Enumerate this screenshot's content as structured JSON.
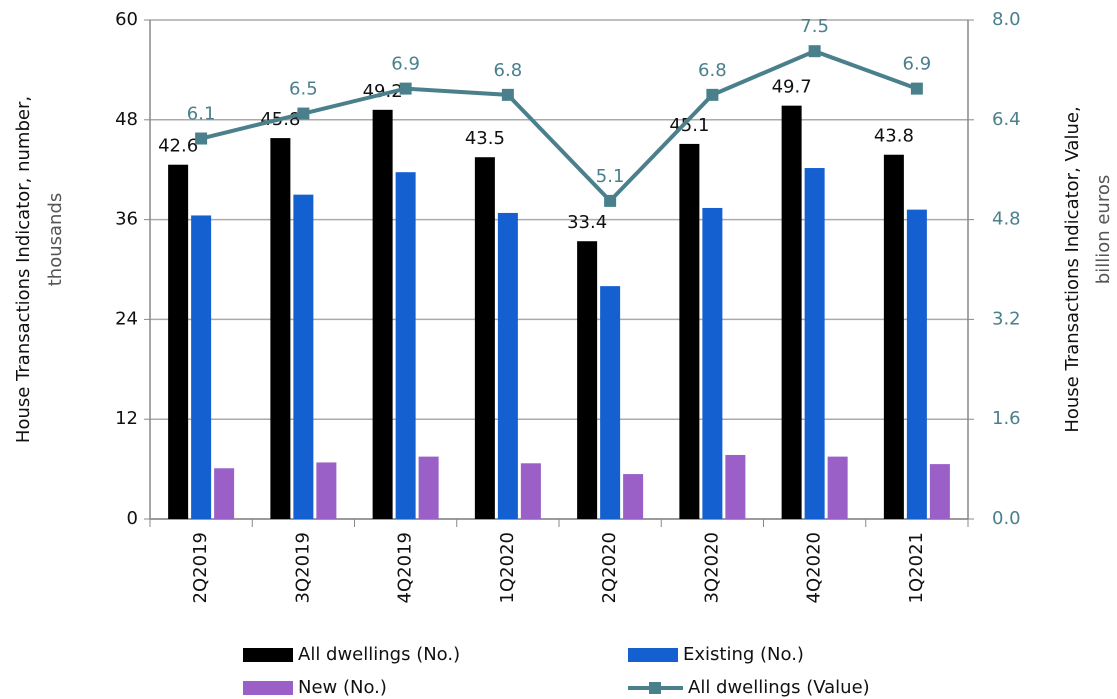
{
  "chart_data": {
    "type": "bar",
    "ylabel": [
      "House Transactions Indicator, number,",
      "thousands"
    ],
    "y2label": [
      "House Transactions Indicator, Value,",
      "billion euros"
    ],
    "categories": [
      "2Q2019",
      "3Q2019",
      "4Q2019",
      "1Q2020",
      "2Q2020",
      "3Q2020",
      "4Q2020",
      "1Q2021"
    ],
    "series": [
      {
        "name": "All dwellings (No.)",
        "type": "bar",
        "color": "#000000",
        "data_labels": true,
        "values": [
          42.6,
          45.8,
          49.2,
          43.5,
          33.4,
          45.1,
          49.7,
          43.8
        ]
      },
      {
        "name": "Existing (No.)",
        "type": "bar",
        "color": "#1560d0",
        "data_labels": false,
        "values": [
          36.5,
          39.0,
          41.7,
          36.8,
          28.0,
          37.4,
          42.2,
          37.2
        ]
      },
      {
        "name": "New (No.)",
        "type": "bar",
        "color": "#9b5fc8",
        "data_labels": false,
        "values": [
          6.1,
          6.8,
          7.5,
          6.7,
          5.4,
          7.7,
          7.5,
          6.6
        ]
      },
      {
        "name": "All dwellings (Value)",
        "type": "line",
        "axis": "y2",
        "color": "#4a808c",
        "data_labels": true,
        "values": [
          6.1,
          6.5,
          6.9,
          6.8,
          5.1,
          6.8,
          7.5,
          6.9
        ]
      }
    ],
    "ylim": [
      0,
      60
    ],
    "yticks": [
      0,
      12,
      24,
      36,
      48,
      60
    ],
    "y2lim": [
      0,
      8
    ],
    "y2ticks": [
      {
        "value": 0,
        "label": "0.0"
      },
      1.6,
      3.2,
      4.8,
      6.4,
      {
        "value": 8,
        "label": "8.0"
      }
    ],
    "grid": true,
    "legend": "bottom"
  }
}
